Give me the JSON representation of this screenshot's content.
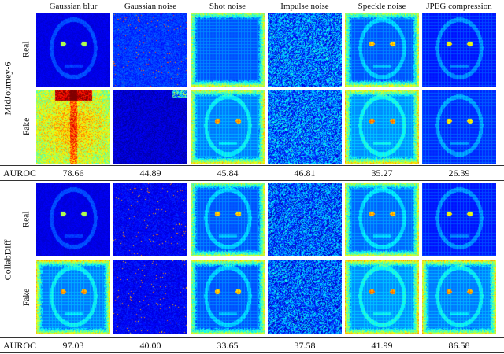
{
  "columns": [
    "Gaussian blur",
    "Gaussian noise",
    "Shot noise",
    "Impulse noise",
    "Speckle noise",
    "JPEG compression"
  ],
  "row_labels": [
    "Real",
    "Fake"
  ],
  "auroc_label": "AUROC",
  "groups": [
    {
      "name": "MidJourney-6",
      "auroc": [
        "78.66",
        "44.89",
        "45.84",
        "46.81",
        "35.27",
        "26.39"
      ]
    },
    {
      "name": "CollabDiff",
      "auroc": [
        "97.03",
        "40.00",
        "33.65",
        "37.58",
        "41.99",
        "86.58"
      ]
    }
  ],
  "colormap": "jet",
  "chart_data": {
    "type": "table",
    "columns": [
      "Gaussian blur",
      "Gaussian noise",
      "Shot noise",
      "Impulse noise",
      "Speckle noise",
      "JPEG compression"
    ],
    "rows": [
      {
        "dataset": "MidJourney-6",
        "metric": "AUROC",
        "values": [
          78.66,
          44.89,
          45.84,
          46.81,
          35.27,
          26.39
        ]
      },
      {
        "dataset": "CollabDiff",
        "metric": "AUROC",
        "values": [
          97.03,
          40.0,
          33.65,
          37.58,
          41.99,
          86.58
        ]
      }
    ]
  }
}
